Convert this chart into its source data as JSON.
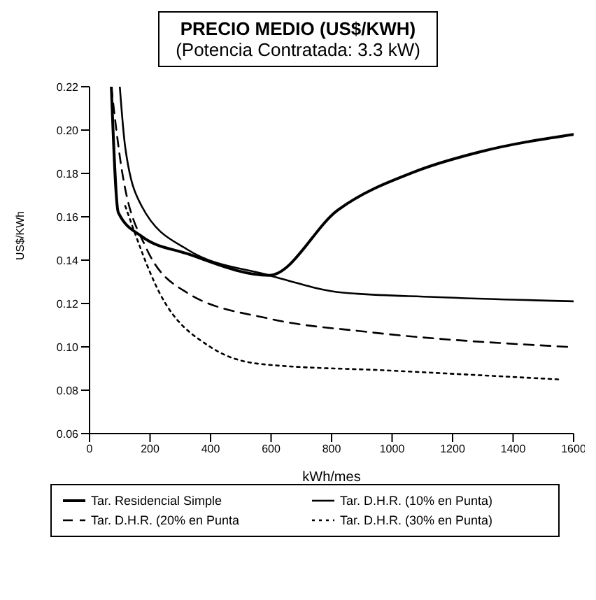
{
  "chart_data": {
    "type": "line",
    "title": "PRECIO MEDIO (US$/KWH)",
    "subtitle": "(Potencia Contratada: 3.3 kW)",
    "xlabel": "kWh/mes",
    "ylabel": "US$/KWh",
    "xlim": [
      0,
      1600
    ],
    "xticks": [
      0,
      200,
      400,
      600,
      800,
      1000,
      1200,
      1400,
      1600
    ],
    "ylim": [
      0.06,
      0.22
    ],
    "yticks": [
      {
        "value": 0.06,
        "label": "0.06"
      },
      {
        "value": 0.08,
        "label": "0.08"
      },
      {
        "value": 0.1,
        "label": "0.10"
      },
      {
        "value": 0.12,
        "label": "0.12"
      },
      {
        "value": 0.14,
        "label": "0.14"
      },
      {
        "value": 0.16,
        "label": "0.16"
      },
      {
        "value": 0.18,
        "label": "0.18"
      },
      {
        "value": 0.2,
        "label": "0.20"
      },
      {
        "value": 0.22,
        "label": "0.22"
      }
    ],
    "legend": "bottom",
    "marker": "none",
    "series": [
      {
        "name": "Tar. Residencial Simple",
        "color": "#000000",
        "line_style": "solid",
        "x": [
          72,
          95,
          172,
          322,
          594,
          820,
          1079,
          1292,
          1600
        ],
        "values": [
          0.22,
          0.162,
          0.151,
          0.143,
          0.133,
          0.163,
          0.181,
          0.19,
          0.198
        ]
      },
      {
        "name": "Tar. D.H.R. (10% en Punta)",
        "color": "#000000",
        "line_style": "solid",
        "x": [
          100,
          118,
          172,
          322,
          594,
          838,
          1140,
          1600
        ],
        "values": [
          0.22,
          0.192,
          0.165,
          0.145,
          0.133,
          0.125,
          0.123,
          0.121
        ]
      },
      {
        "name": "Tar. D.H.R. (20% en Punta",
        "color": "#000000",
        "line_style": "dashed",
        "x": [
          72,
          104,
          186,
          322,
          594,
          911,
          1580
        ],
        "values": [
          0.22,
          0.184,
          0.146,
          0.125,
          0.113,
          0.107,
          0.1
        ]
      },
      {
        "name": "Tar. D.H.R. (30% en Punta)",
        "color": "#000000",
        "line_style": "dotted",
        "x": [
          118,
          231,
          399,
          571,
          1002,
          1550
        ],
        "values": [
          0.165,
          0.125,
          0.1,
          0.092,
          0.089,
          0.085
        ]
      }
    ]
  }
}
